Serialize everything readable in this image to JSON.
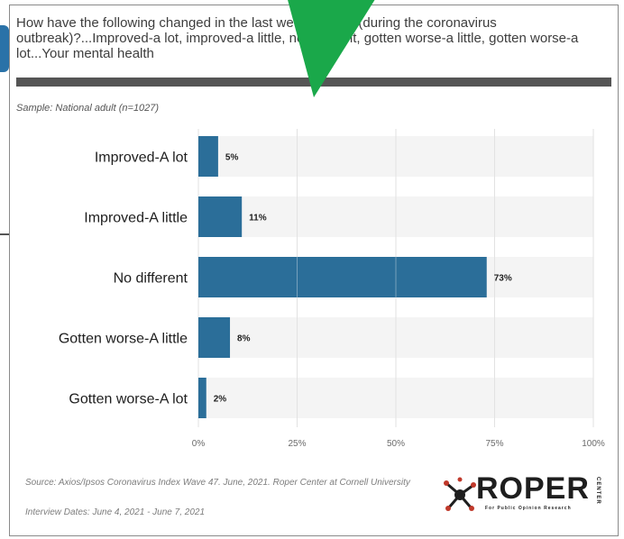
{
  "chart_data": {
    "type": "bar",
    "orientation": "horizontal",
    "title": "How have the following changed in the last week, if at all (during the coronavirus outbreak)?...Improved-a lot, improved-a little, no different, gotten worse-a little, gotten worse-a lot...Your mental health",
    "subtitle": "Sample: National adult (n=1027)",
    "categories": [
      "Improved-A lot",
      "Improved-A little",
      "No different",
      "Gotten worse-A little",
      "Gotten worse-A lot"
    ],
    "values": [
      5,
      11,
      73,
      8,
      2
    ],
    "data_labels": [
      "5%",
      "11%",
      "73%",
      "8%",
      "2%"
    ],
    "xlim": [
      0,
      100
    ],
    "x_ticks": [
      0,
      25,
      50,
      75,
      100
    ],
    "x_tick_labels": [
      "0%",
      "25%",
      "50%",
      "75%",
      "100%"
    ],
    "xlabel": "",
    "ylabel": "",
    "grid": true,
    "legend": "none",
    "bar_color": "#2b6e99",
    "band_color": "#f4f4f4"
  },
  "footer": {
    "source": "Source: Axios/Ipsos Coronavirus Index Wave 47. June, 2021. Roper Center at Cornell University",
    "dates": "Interview Dates: June 4, 2021 - June 7, 2021"
  },
  "logo": {
    "name": "ROPER",
    "center": "CENTER",
    "tagline": "For Public Opinion Research",
    "accent_color": "#c0392b"
  },
  "overlay": {
    "arrow_color": "#1aa84a"
  }
}
